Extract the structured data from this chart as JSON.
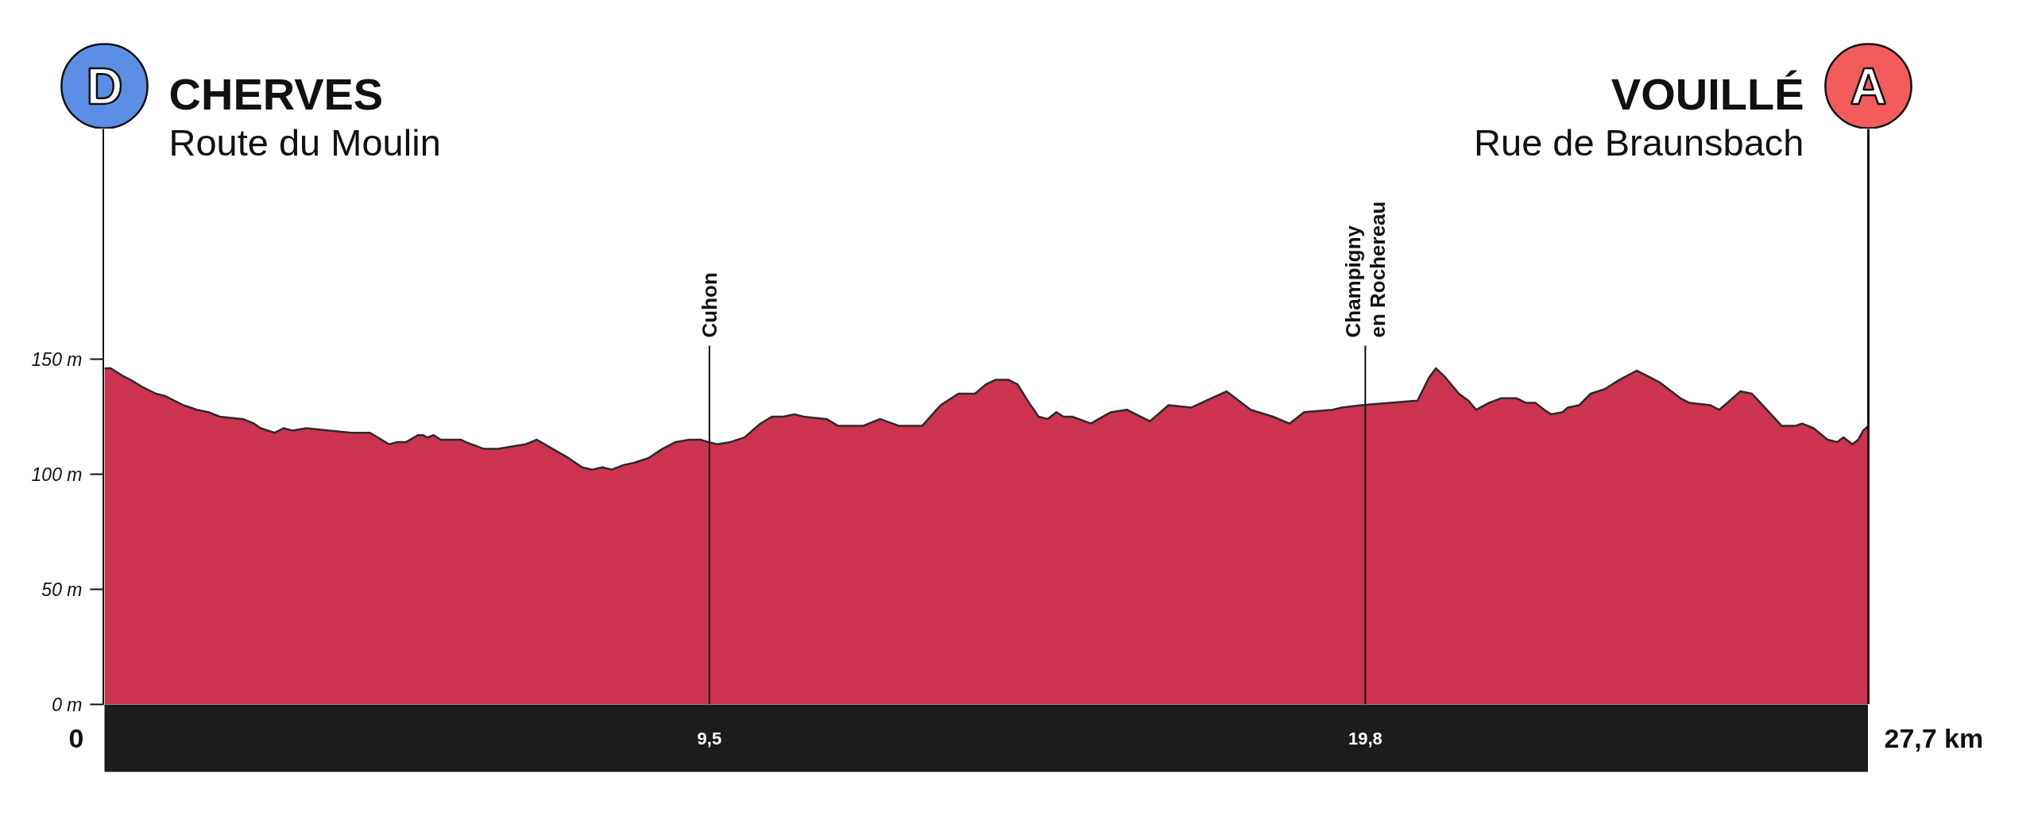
{
  "chart_data": {
    "type": "area",
    "color": "#cb3350",
    "x": [
      0,
      0.1,
      0.27,
      0.41,
      0.59,
      0.81,
      0.95,
      1.24,
      1.45,
      1.63,
      1.81,
      2.17,
      2.35,
      2.45,
      2.67,
      2.81,
      2.95,
      3.17,
      3.53,
      3.88,
      4.17,
      4.47,
      4.6,
      4.74,
      4.92,
      5.0,
      5.07,
      5.17,
      5.28,
      5.6,
      5.67,
      5.96,
      6.18,
      6.61,
      6.79,
      7.04,
      7.29,
      7.5,
      7.66,
      7.82,
      7.97,
      8.15,
      8.32,
      8.54,
      8.76,
      8.97,
      9.18,
      9.36,
      9.48,
      9.62,
      9.83,
      10.05,
      10.3,
      10.48,
      10.66,
      10.84,
      10.98,
      11.34,
      11.52,
      11.91,
      12.18,
      12.48,
      12.84,
      13.13,
      13.41,
      13.67,
      13.84,
      13.99,
      14.2,
      14.34,
      14.52,
      14.67,
      14.81,
      14.95,
      15.06,
      15.2,
      15.49,
      15.74,
      15.81,
      16.06,
      16.42,
      16.71,
      17.07,
      17.62,
      18.0,
      18.35,
      18.61,
      18.84,
      19.29,
      19.43,
      19.74,
      20.62,
      20.8,
      20.91,
      21.06,
      21.27,
      21.42,
      21.54,
      21.74,
      21.93,
      22.18,
      22.32,
      22.47,
      22.61,
      22.72,
      22.9,
      22.98,
      23.16,
      23.34,
      23.56,
      23.79,
      24.06,
      24.21,
      24.42,
      24.75,
      24.89,
      25.22,
      25.36,
      25.69,
      25.87,
      25.94,
      26.34,
      26.55,
      26.66,
      26.84,
      27.06,
      27.21,
      27.31,
      27.45,
      27.54,
      27.62,
      27.7
    ],
    "values": [
      146,
      146,
      143,
      141,
      138,
      135,
      134,
      130,
      128,
      127,
      125,
      124,
      122,
      120,
      118,
      120,
      119,
      120,
      119,
      118,
      118,
      113,
      114,
      114,
      117,
      117,
      116,
      117,
      115,
      115,
      114,
      111,
      111,
      113,
      115,
      111,
      107,
      103,
      102,
      103,
      102,
      104,
      105,
      107,
      111,
      114,
      115,
      115,
      114,
      113,
      114,
      116,
      122,
      125,
      125,
      126,
      125,
      124,
      121,
      121,
      124,
      121,
      121,
      130,
      135,
      135,
      139,
      141,
      141,
      139,
      131,
      125,
      124,
      127,
      125,
      125,
      122,
      126,
      127,
      128,
      123,
      130,
      129,
      136,
      128,
      125,
      122,
      127,
      128,
      129,
      130,
      132,
      142,
      146,
      142,
      135,
      132,
      128,
      131,
      133,
      133,
      131,
      131,
      128,
      126,
      127,
      129,
      130,
      135,
      137,
      141,
      145,
      143,
      140,
      133,
      131,
      130,
      128,
      136,
      135,
      133,
      121,
      121,
      122,
      120,
      115,
      114,
      116,
      113,
      115,
      119,
      121
    ],
    "xlim": [
      0,
      27.7
    ],
    "ylim": [
      0,
      250
    ],
    "xticks": [
      {
        "value": 9.5,
        "label": "9,5"
      },
      {
        "value": 19.8,
        "label": "19,8"
      }
    ],
    "yticks": [
      {
        "value": 0,
        "label": "0 m"
      },
      {
        "value": 50,
        "label": "50 m"
      },
      {
        "value": 100,
        "label": "100 m"
      },
      {
        "value": 150,
        "label": "150 m"
      }
    ],
    "ref_lines": [
      {
        "axis": "x",
        "value": 9.5,
        "label": "Cuhon"
      },
      {
        "axis": "x",
        "value": 19.8,
        "label": "Champigny\nen Rochereau"
      }
    ],
    "annotations": [
      "D",
      "CHERVES",
      "Route du Moulin",
      "A",
      "VOUILLÉ",
      "Rue de Braunsbach",
      "0",
      "27,7 km"
    ]
  }
}
